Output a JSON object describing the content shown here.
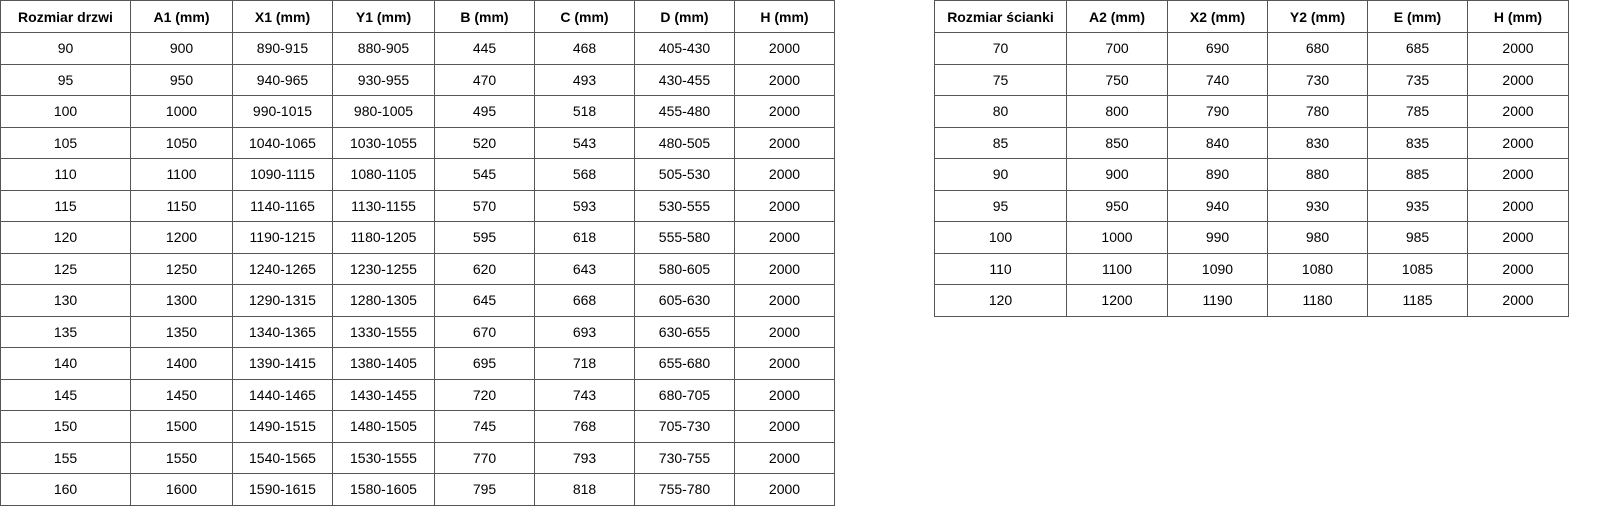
{
  "door_table": {
    "headers": [
      "Rozmiar drzwi",
      "A1 (mm)",
      "X1 (mm)",
      "Y1 (mm)",
      "B (mm)",
      "C (mm)",
      "D (mm)",
      "H (mm)"
    ],
    "rows": [
      [
        "90",
        "900",
        "890-915",
        "880-905",
        "445",
        "468",
        "405-430",
        "2000"
      ],
      [
        "95",
        "950",
        "940-965",
        "930-955",
        "470",
        "493",
        "430-455",
        "2000"
      ],
      [
        "100",
        "1000",
        "990-1015",
        "980-1005",
        "495",
        "518",
        "455-480",
        "2000"
      ],
      [
        "105",
        "1050",
        "1040-1065",
        "1030-1055",
        "520",
        "543",
        "480-505",
        "2000"
      ],
      [
        "110",
        "1100",
        "1090-1115",
        "1080-1105",
        "545",
        "568",
        "505-530",
        "2000"
      ],
      [
        "115",
        "1150",
        "1140-1165",
        "1130-1155",
        "570",
        "593",
        "530-555",
        "2000"
      ],
      [
        "120",
        "1200",
        "1190-1215",
        "1180-1205",
        "595",
        "618",
        "555-580",
        "2000"
      ],
      [
        "125",
        "1250",
        "1240-1265",
        "1230-1255",
        "620",
        "643",
        "580-605",
        "2000"
      ],
      [
        "130",
        "1300",
        "1290-1315",
        "1280-1305",
        "645",
        "668",
        "605-630",
        "2000"
      ],
      [
        "135",
        "1350",
        "1340-1365",
        "1330-1555",
        "670",
        "693",
        "630-655",
        "2000"
      ],
      [
        "140",
        "1400",
        "1390-1415",
        "1380-1405",
        "695",
        "718",
        "655-680",
        "2000"
      ],
      [
        "145",
        "1450",
        "1440-1465",
        "1430-1455",
        "720",
        "743",
        "680-705",
        "2000"
      ],
      [
        "150",
        "1500",
        "1490-1515",
        "1480-1505",
        "745",
        "768",
        "705-730",
        "2000"
      ],
      [
        "155",
        "1550",
        "1540-1565",
        "1530-1555",
        "770",
        "793",
        "730-755",
        "2000"
      ],
      [
        "160",
        "1600",
        "1590-1615",
        "1580-1605",
        "795",
        "818",
        "755-780",
        "2000"
      ]
    ]
  },
  "wall_table": {
    "headers": [
      "Rozmiar ścianki",
      "A2 (mm)",
      "X2 (mm)",
      "Y2 (mm)",
      "E (mm)",
      "H (mm)"
    ],
    "rows": [
      [
        "70",
        "700",
        "690",
        "680",
        "685",
        "2000"
      ],
      [
        "75",
        "750",
        "740",
        "730",
        "735",
        "2000"
      ],
      [
        "80",
        "800",
        "790",
        "780",
        "785",
        "2000"
      ],
      [
        "85",
        "850",
        "840",
        "830",
        "835",
        "2000"
      ],
      [
        "90",
        "900",
        "890",
        "880",
        "885",
        "2000"
      ],
      [
        "95",
        "950",
        "940",
        "930",
        "935",
        "2000"
      ],
      [
        "100",
        "1000",
        "990",
        "980",
        "985",
        "2000"
      ],
      [
        "110",
        "1100",
        "1090",
        "1080",
        "1085",
        "2000"
      ],
      [
        "120",
        "1200",
        "1190",
        "1180",
        "1185",
        "2000"
      ]
    ]
  }
}
